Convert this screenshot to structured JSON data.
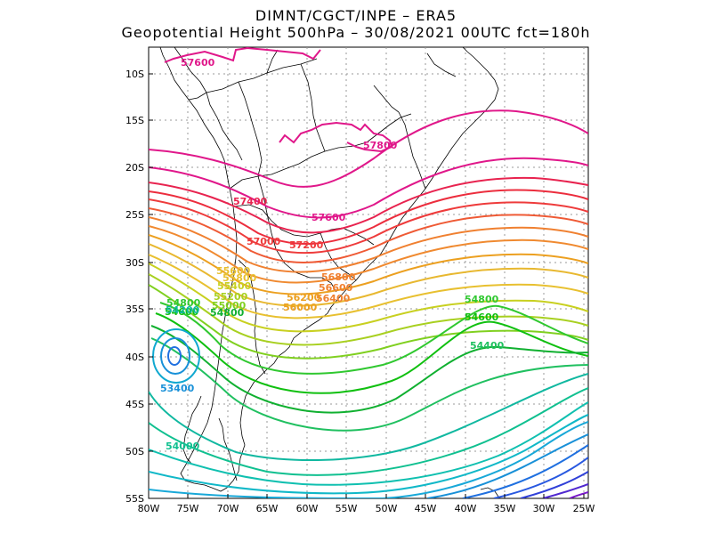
{
  "header": {
    "line1": "DIMNT/CGCT/INPE –  ERA5",
    "line2": "Geopotential Height 500hPa –  30/08/2021 00UTC fct=180h"
  },
  "axes": {
    "lat_labels": [
      "10S",
      "15S",
      "20S",
      "25S",
      "30S",
      "35S",
      "40S",
      "45S",
      "50S",
      "55S"
    ],
    "lon_labels": [
      "80W",
      "75W",
      "70W",
      "65W",
      "60W",
      "55W",
      "50W",
      "45W",
      "40W",
      "35W",
      "30W",
      "25W"
    ]
  },
  "contour_labels": [
    {
      "text": "57600",
      "color": "#e0178a"
    },
    {
      "text": "57800",
      "color": "#e0178a"
    },
    {
      "text": "57600",
      "color": "#e0178a"
    },
    {
      "text": "57400",
      "color": "#e8234f"
    },
    {
      "text": "57200",
      "color": "#ee3b3b"
    },
    {
      "text": "57000",
      "color": "#ee3b3b"
    },
    {
      "text": "56800",
      "color": "#f08030"
    },
    {
      "text": "56600",
      "color": "#f08030"
    },
    {
      "text": "56400",
      "color": "#f08030"
    },
    {
      "text": "56200",
      "color": "#eca020"
    },
    {
      "text": "56000",
      "color": "#eca020"
    },
    {
      "text": "55800",
      "color": "#e8c030"
    },
    {
      "text": "55600",
      "color": "#e8c030"
    },
    {
      "text": "55400",
      "color": "#c8d020"
    },
    {
      "text": "55200",
      "color": "#a8d020"
    },
    {
      "text": "55000",
      "color": "#80d020"
    },
    {
      "text": "54800",
      "color": "#30c830"
    },
    {
      "text": "54800",
      "color": "#30c830"
    },
    {
      "text": "54600",
      "color": "#10c010"
    },
    {
      "text": "54800",
      "color": "#10b030"
    },
    {
      "text": "54600",
      "color": "#10c010"
    },
    {
      "text": "54400",
      "color": "#20c060"
    },
    {
      "text": "54200",
      "color": "#10b8a0"
    },
    {
      "text": "54000",
      "color": "#10c090"
    },
    {
      "text": "53400",
      "color": "#1890d8"
    }
  ]
}
